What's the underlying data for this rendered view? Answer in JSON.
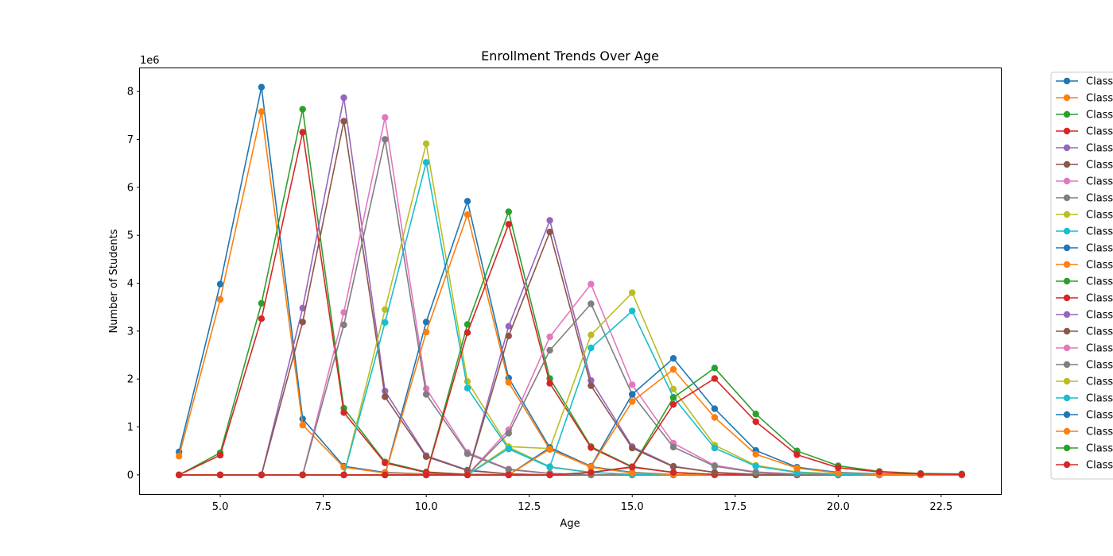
{
  "chart_data": {
    "type": "line",
    "title": "Enrollment Trends Over Age",
    "xlabel": "Age",
    "ylabel": "Number of Students",
    "y_offset_label": "1e6",
    "xlim": [
      3.05,
      23.95
    ],
    "ylim": [
      -0.4,
      8.5
    ],
    "y_scale": 1000000,
    "x_ticks": [
      5.0,
      7.5,
      10.0,
      12.5,
      15.0,
      17.5,
      20.0,
      22.5
    ],
    "x_tick_labels": [
      "5.0",
      "7.5",
      "10.0",
      "12.5",
      "15.0",
      "17.5",
      "20.0",
      "22.5"
    ],
    "y_ticks": [
      0,
      1,
      2,
      3,
      4,
      5,
      6,
      7,
      8
    ],
    "y_tick_labels": [
      "0",
      "1",
      "2",
      "3",
      "4",
      "5",
      "6",
      "7",
      "8"
    ],
    "grid": false,
    "legend_position": "outside-right",
    "x": [
      4,
      5,
      6,
      7,
      8,
      9,
      10,
      11,
      12,
      13,
      14,
      15,
      16,
      17,
      18,
      19,
      20,
      21,
      22,
      23
    ],
    "series": [
      {
        "name": "Class",
        "color": "#1f77b4",
        "values": [
          0.48,
          3.98,
          8.09,
          1.17,
          0.18,
          0.05,
          0.02,
          0,
          0,
          0,
          0,
          0,
          0,
          0,
          0,
          0,
          0,
          0,
          0,
          0
        ]
      },
      {
        "name": "Class",
        "color": "#ff7f0e",
        "values": [
          0.39,
          3.66,
          7.58,
          1.04,
          0.16,
          0.04,
          0.02,
          0,
          0,
          0,
          0,
          0,
          0,
          0,
          0,
          0,
          0,
          0,
          0,
          0
        ]
      },
      {
        "name": "Class",
        "color": "#2ca02c",
        "values": [
          0,
          0.46,
          3.58,
          7.63,
          1.39,
          0.27,
          0.06,
          0.01,
          0,
          0,
          0,
          0,
          0,
          0,
          0,
          0,
          0,
          0,
          0,
          0
        ]
      },
      {
        "name": "Class",
        "color": "#d62728",
        "values": [
          0,
          0.41,
          3.26,
          7.15,
          1.3,
          0.25,
          0.05,
          0.01,
          0,
          0,
          0,
          0,
          0,
          0,
          0,
          0,
          0,
          0,
          0,
          0
        ]
      },
      {
        "name": "Class",
        "color": "#9467bd",
        "values": [
          0,
          0,
          0,
          3.48,
          7.87,
          1.75,
          0.4,
          0.1,
          0.02,
          0,
          0,
          0,
          0,
          0,
          0,
          0,
          0,
          0,
          0,
          0
        ]
      },
      {
        "name": "Class",
        "color": "#8c564b",
        "values": [
          0,
          0,
          0,
          3.19,
          7.38,
          1.63,
          0.38,
          0.09,
          0.02,
          0,
          0,
          0,
          0,
          0,
          0,
          0,
          0,
          0,
          0,
          0
        ]
      },
      {
        "name": "Class",
        "color": "#e377c2",
        "values": [
          0,
          0,
          0,
          0,
          3.39,
          7.46,
          1.8,
          0.47,
          0.12,
          0.03,
          0,
          0,
          0,
          0,
          0,
          0,
          0,
          0,
          0,
          0
        ]
      },
      {
        "name": "Class",
        "color": "#7f7f7f",
        "values": [
          0,
          0,
          0,
          0,
          3.13,
          7.0,
          1.68,
          0.44,
          0.11,
          0.03,
          0,
          0,
          0,
          0,
          0,
          0,
          0,
          0,
          0,
          0
        ]
      },
      {
        "name": "Class",
        "color": "#bcbd22",
        "values": [
          0,
          0,
          0,
          0,
          0,
          3.45,
          6.91,
          1.95,
          0.58,
          0.17,
          0.05,
          0.01,
          0,
          0,
          0,
          0,
          0,
          0,
          0,
          0
        ]
      },
      {
        "name": "Class",
        "color": "#17becf",
        "values": [
          0,
          0,
          0,
          0,
          0,
          3.18,
          6.52,
          1.81,
          0.54,
          0.16,
          0.05,
          0.01,
          0,
          0,
          0,
          0,
          0,
          0,
          0,
          0
        ]
      },
      {
        "name": "Class",
        "color": "#1f77b4",
        "values": [
          0,
          0,
          0,
          0,
          0,
          0,
          3.19,
          5.71,
          2.02,
          0.57,
          0.17,
          0.05,
          0.01,
          0,
          0,
          0,
          0,
          0,
          0,
          0
        ]
      },
      {
        "name": "Class",
        "color": "#ff7f0e",
        "values": [
          0,
          0,
          0,
          0,
          0,
          0,
          2.98,
          5.43,
          1.93,
          0.53,
          0.16,
          0.04,
          0.01,
          0,
          0,
          0,
          0,
          0,
          0,
          0
        ]
      },
      {
        "name": "Class",
        "color": "#2ca02c",
        "values": [
          0,
          0,
          0,
          0,
          0,
          0,
          0,
          3.14,
          5.49,
          2.01,
          0.59,
          0.17,
          0.05,
          0.01,
          0,
          0,
          0,
          0,
          0,
          0
        ]
      },
      {
        "name": "Class",
        "color": "#d62728",
        "values": [
          0,
          0,
          0,
          0,
          0,
          0,
          0,
          2.97,
          5.23,
          1.91,
          0.57,
          0.16,
          0.05,
          0.01,
          0,
          0,
          0,
          0,
          0,
          0
        ]
      },
      {
        "name": "Class",
        "color": "#9467bd",
        "values": [
          0,
          0,
          0,
          0,
          0,
          0,
          0,
          0,
          3.1,
          5.31,
          1.97,
          0.59,
          0.18,
          0.05,
          0.01,
          0,
          0,
          0,
          0,
          0
        ]
      },
      {
        "name": "Class",
        "color": "#8c564b",
        "values": [
          0,
          0,
          0,
          0,
          0,
          0,
          0,
          0,
          2.9,
          5.07,
          1.86,
          0.56,
          0.17,
          0.05,
          0.01,
          0,
          0,
          0,
          0,
          0
        ]
      },
      {
        "name": "Class",
        "color": "#e377c2",
        "values": [
          0,
          0,
          0,
          0,
          0,
          0,
          0,
          0,
          0.94,
          2.88,
          3.98,
          1.88,
          0.66,
          0.2,
          0.06,
          0.02,
          0,
          0,
          0,
          0
        ]
      },
      {
        "name": "Class",
        "color": "#7f7f7f",
        "values": [
          0,
          0,
          0,
          0,
          0,
          0,
          0,
          0,
          0.87,
          2.6,
          3.57,
          1.68,
          0.58,
          0.18,
          0.05,
          0.01,
          0,
          0,
          0,
          0
        ]
      },
      {
        "name": "Class",
        "color": "#bcbd22",
        "values": [
          0,
          0,
          0,
          0,
          0,
          0,
          0,
          0,
          0.59,
          0.55,
          2.92,
          3.8,
          1.79,
          0.62,
          0.2,
          0.06,
          0.02,
          0,
          0,
          0
        ]
      },
      {
        "name": "Class",
        "color": "#17becf",
        "values": [
          0,
          0,
          0,
          0,
          0,
          0,
          0,
          0,
          0.55,
          0.17,
          2.65,
          3.42,
          1.62,
          0.56,
          0.18,
          0.05,
          0.01,
          0,
          0,
          0
        ]
      },
      {
        "name": "Class",
        "color": "#1f77b4",
        "values": [
          0,
          0,
          0,
          0,
          0,
          0,
          0,
          0,
          0,
          0.57,
          0.18,
          1.68,
          2.43,
          1.38,
          0.51,
          0.16,
          0.05,
          0.02,
          0.01,
          0
        ]
      },
      {
        "name": "Class",
        "color": "#ff7f0e",
        "values": [
          0,
          0,
          0,
          0,
          0,
          0,
          0,
          0,
          0,
          0.54,
          0.17,
          1.53,
          2.2,
          1.2,
          0.43,
          0.14,
          0.04,
          0.01,
          0,
          0
        ]
      },
      {
        "name": "Class",
        "color": "#2ca02c",
        "values": [
          0,
          0,
          0,
          0,
          0,
          0,
          0,
          0,
          0,
          0,
          0.05,
          0.17,
          1.61,
          2.23,
          1.27,
          0.5,
          0.19,
          0.07,
          0.03,
          0.02
        ]
      },
      {
        "name": "Class",
        "color": "#d62728",
        "values": [
          0,
          0,
          0,
          0,
          0,
          0,
          0,
          0,
          0,
          0,
          0.05,
          0.16,
          1.47,
          2.01,
          1.11,
          0.42,
          0.15,
          0.06,
          0.02,
          0.01
        ]
      }
    ]
  }
}
